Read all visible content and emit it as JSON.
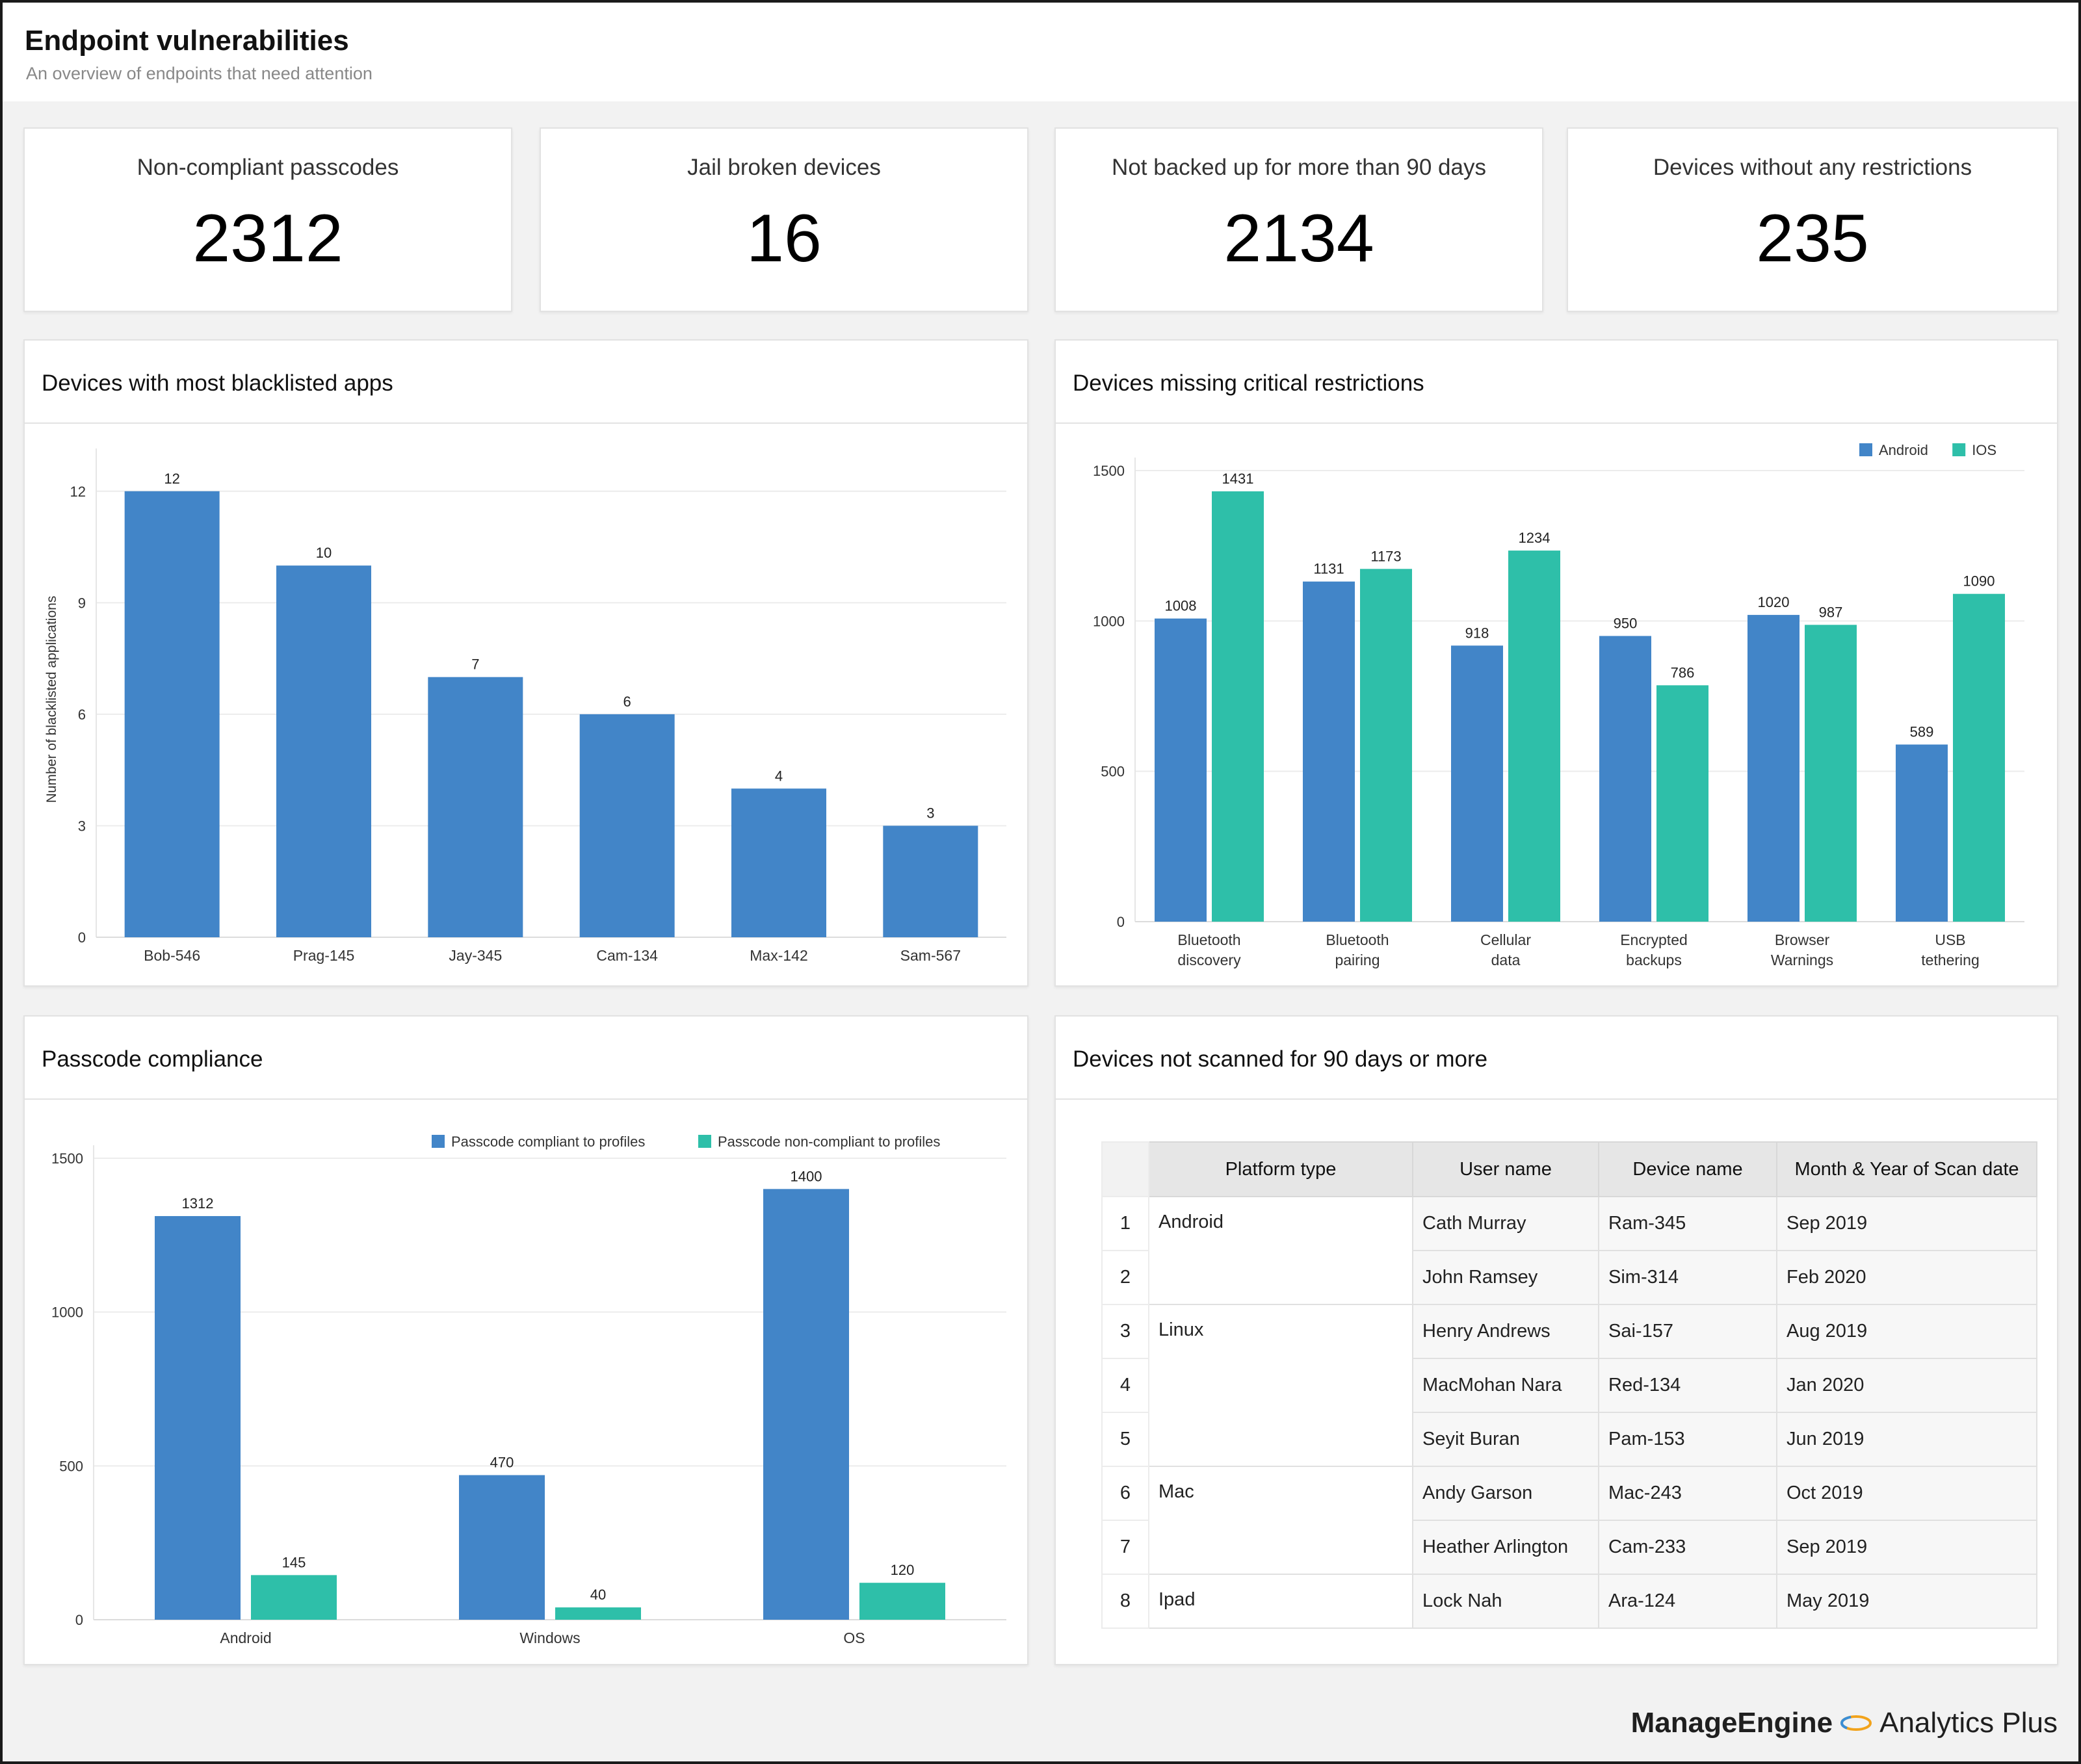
{
  "header": {
    "title": "Endpoint vulnerabilities",
    "subtitle": "An overview of endpoints that need attention"
  },
  "kpis": [
    {
      "label": "Non-compliant passcodes",
      "value": "2312"
    },
    {
      "label": "Jail broken devices",
      "value": "16"
    },
    {
      "label": "Not backed up for more than 90 days",
      "value": "2134"
    },
    {
      "label": "Devices without any restrictions",
      "value": "235"
    }
  ],
  "panels": {
    "blacklisted": {
      "title": "Devices with most blacklisted apps"
    },
    "restrictions": {
      "title": "Devices missing critical restrictions"
    },
    "passcode": {
      "title": "Passcode compliance"
    },
    "not_scanned": {
      "title": "Devices not scanned for 90 days or more"
    }
  },
  "colors": {
    "blue": "#4285c8",
    "teal": "#2ebfa9"
  },
  "chart_data": [
    {
      "id": "blacklisted",
      "type": "bar",
      "ylabel": "Number of blacklisted applications",
      "categories": [
        "Bob-546",
        "Prag-145",
        "Jay-345",
        "Cam-134",
        "Max-142",
        "Sam-567"
      ],
      "values": [
        12,
        10,
        7,
        6,
        4,
        3
      ],
      "ylim": [
        0,
        12.8
      ],
      "yticks": [
        0,
        3,
        6,
        9,
        12
      ],
      "grid": true
    },
    {
      "id": "restrictions",
      "type": "bar",
      "categories": [
        [
          "Bluetooth",
          "discovery"
        ],
        [
          "Bluetooth",
          "pairing"
        ],
        [
          "Cellular",
          "data"
        ],
        [
          "Encrypted",
          "backups"
        ],
        [
          "Browser",
          "Warnings"
        ],
        [
          "USB",
          "tethering"
        ]
      ],
      "series": [
        {
          "name": "Android",
          "values": [
            1008,
            1131,
            918,
            950,
            1020,
            589
          ]
        },
        {
          "name": "IOS",
          "values": [
            1431,
            1173,
            1234,
            786,
            987,
            1090
          ]
        }
      ],
      "ylim": [
        0,
        1500
      ],
      "yticks": [
        0,
        500,
        1000,
        1500
      ],
      "legend": "top-right",
      "grid": true
    },
    {
      "id": "passcode",
      "type": "bar",
      "categories": [
        "Android",
        "Windows",
        "OS"
      ],
      "series": [
        {
          "name": "Passcode compliant to profiles",
          "values": [
            1312,
            470,
            1400
          ]
        },
        {
          "name": "Passcode non-compliant to profiles",
          "values": [
            145,
            40,
            120
          ]
        }
      ],
      "ylim": [
        0,
        1500
      ],
      "yticks": [
        0,
        500,
        1000,
        1500
      ],
      "legend": "top-right",
      "grid": true
    }
  ],
  "scan_table": {
    "columns": [
      "Platform type",
      "User name",
      "Device name",
      "Month & Year of Scan date"
    ],
    "rows": [
      {
        "idx": "1",
        "platform": "Android",
        "user": "Cath Murray",
        "device": "Ram-345",
        "date": "Sep 2019"
      },
      {
        "idx": "2",
        "platform": "",
        "user": "John Ramsey",
        "device": "Sim-314",
        "date": "Feb 2020"
      },
      {
        "idx": "3",
        "platform": "Linux",
        "user": "Henry Andrews",
        "device": "Sai-157",
        "date": "Aug 2019"
      },
      {
        "idx": "4",
        "platform": "",
        "user": "MacMohan Nara",
        "device": "Red-134",
        "date": "Jan 2020"
      },
      {
        "idx": "5",
        "platform": "",
        "user": "Seyit Buran",
        "device": "Pam-153",
        "date": "Jun 2019"
      },
      {
        "idx": "6",
        "platform": "Mac",
        "user": "Andy Garson",
        "device": "Mac-243",
        "date": "Oct 2019"
      },
      {
        "idx": "7",
        "platform": "",
        "user": "Heather Arlington",
        "device": "Cam-233",
        "date": "Sep 2019"
      },
      {
        "idx": "8",
        "platform": "Ipad",
        "user": "Lock Nah",
        "device": "Ara-124",
        "date": "May 2019"
      }
    ]
  },
  "branding": {
    "company": "ManageEngine",
    "product": "Analytics Plus"
  }
}
